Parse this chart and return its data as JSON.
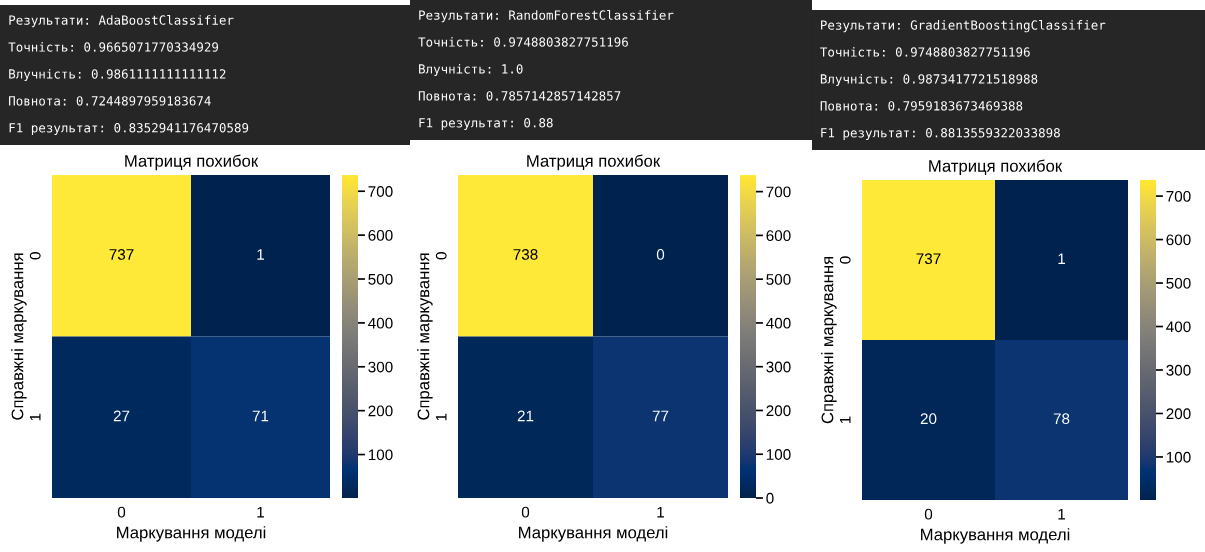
{
  "chart_data": [
    {
      "type": "heatmap",
      "title": "Матриця похибок",
      "xlabel": "Маркування моделі",
      "ylabel": "Справжні маркування",
      "categories": [
        "0",
        "1"
      ],
      "y_categories": [
        "0",
        "1"
      ],
      "cells": [
        [
          737,
          1
        ],
        [
          27,
          71
        ]
      ],
      "clim": [
        1,
        737
      ],
      "cticks": [
        100,
        200,
        300,
        400,
        500,
        600,
        700
      ],
      "data_labels": true,
      "annotations": [
        "Результати: AdaBoostClassifier",
        "Точність: 0.9665071770334929",
        "Влучність: 0.9861111111111112",
        "Повнота: 0.7244897959183674",
        "F1 результат: 0.8352941176470589"
      ]
    },
    {
      "type": "heatmap",
      "title": "Матриця похибок",
      "xlabel": "Маркування моделі",
      "ylabel": "Справжні маркування",
      "categories": [
        "0",
        "1"
      ],
      "y_categories": [
        "0",
        "1"
      ],
      "cells": [
        [
          738,
          0
        ],
        [
          21,
          77
        ]
      ],
      "clim": [
        0,
        738
      ],
      "cticks": [
        0,
        100,
        200,
        300,
        400,
        500,
        600,
        700
      ],
      "data_labels": true,
      "annotations": [
        "Результати: RandomForestClassifier",
        "Точність: 0.9748803827751196",
        "Влучність: 1.0",
        "Повнота: 0.7857142857142857",
        "F1 результат: 0.88"
      ]
    },
    {
      "type": "heatmap",
      "title": "Матриця похибок",
      "xlabel": "Маркування моделі",
      "ylabel": "Справжні маркування",
      "categories": [
        "0",
        "1"
      ],
      "y_categories": [
        "0",
        "1"
      ],
      "cells": [
        [
          737,
          1
        ],
        [
          20,
          78
        ]
      ],
      "clim": [
        1,
        737
      ],
      "cticks": [
        100,
        200,
        300,
        400,
        500,
        600,
        700
      ],
      "data_labels": true,
      "annotations": [
        "Результати: GradientBoostingClassifier",
        "Точність: 0.9748803827751196",
        "Влучність: 0.9873417721518988",
        "Повнота: 0.7959183673469388",
        "F1 результат: 0.8813559322033898"
      ]
    }
  ]
}
